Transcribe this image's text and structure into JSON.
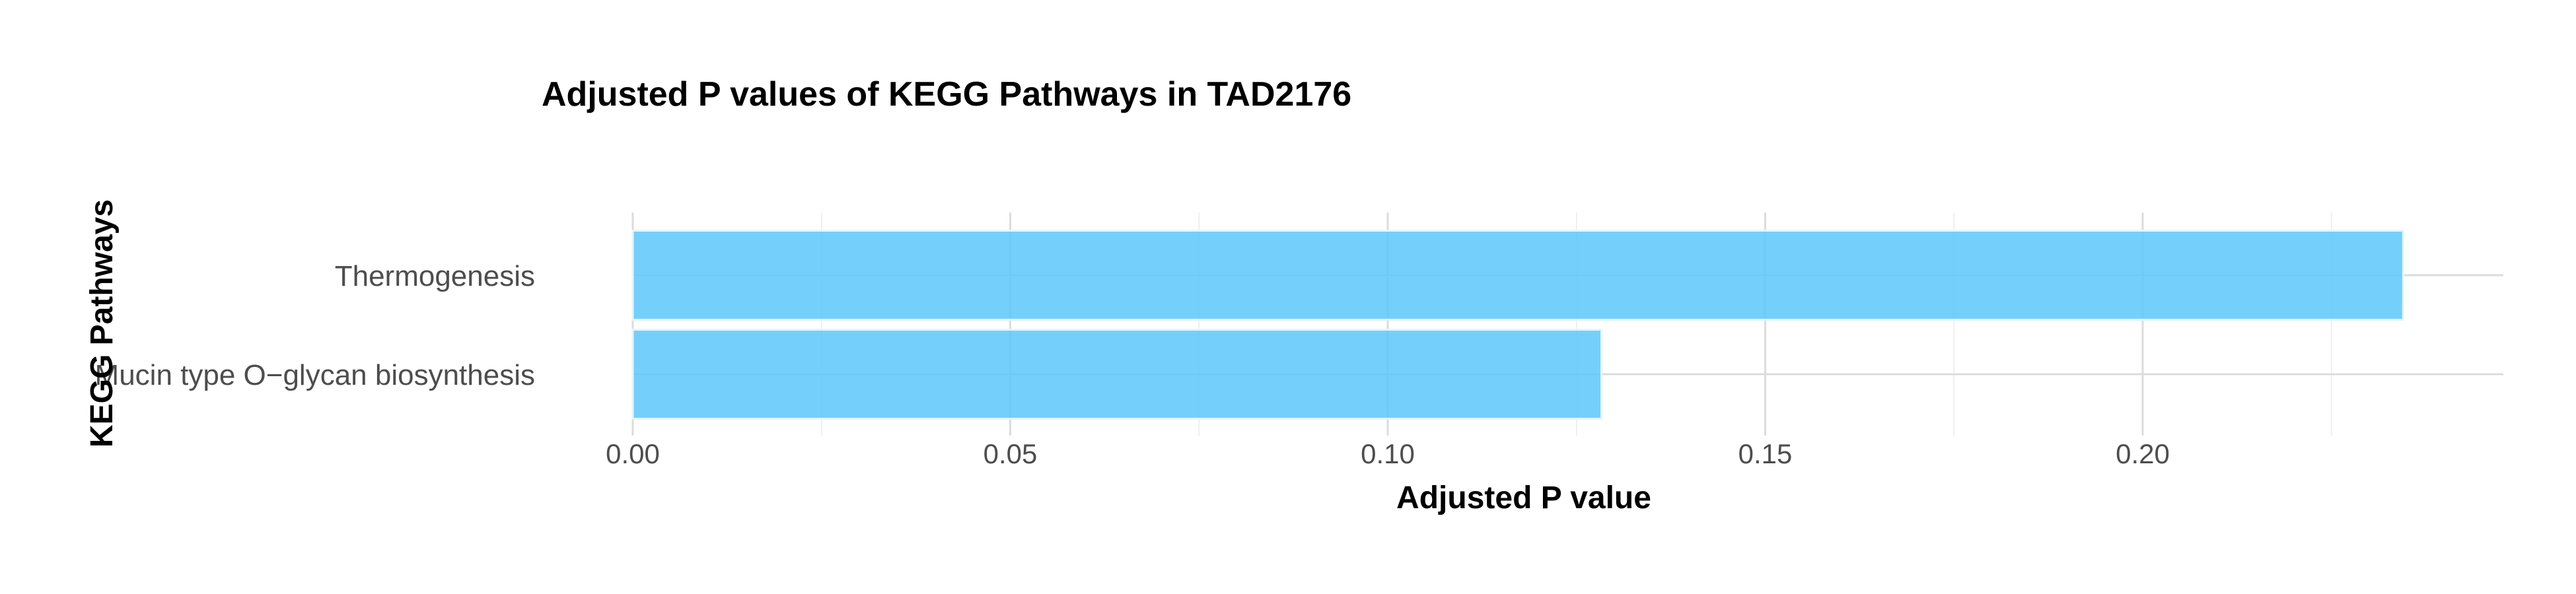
{
  "chart_data": {
    "type": "bar",
    "orientation": "horizontal",
    "title": "Adjusted P values of KEGG Pathways in TAD2176",
    "xlabel": "Adjusted P value",
    "ylabel": "KEGG Pathways",
    "categories": [
      "Mucin type O−glycan biosynthesis",
      "Thermogenesis"
    ],
    "values": [
      0.1283,
      0.2345
    ],
    "xlim": [
      0,
      0.245
    ],
    "xticks": [
      0.0,
      0.05,
      0.1,
      0.15,
      0.2
    ],
    "xtick_labels": [
      "0.00",
      "0.05",
      "0.10",
      "0.15",
      "0.20"
    ],
    "grid": true,
    "legend": "none",
    "bar_color": "#5cc8fa"
  }
}
